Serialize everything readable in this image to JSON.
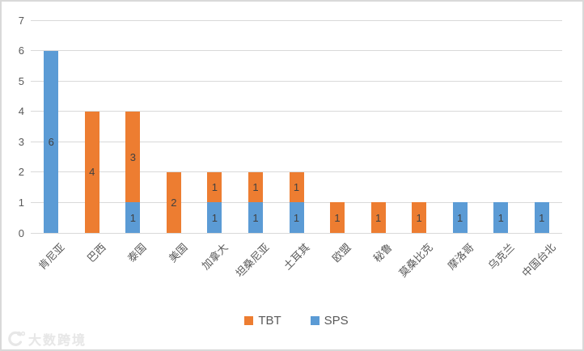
{
  "chart_data": {
    "type": "bar",
    "stacked": true,
    "orientation": "vertical",
    "categories": [
      "肯尼亚",
      "巴西",
      "泰国",
      "美国",
      "加拿大",
      "坦桑尼亚",
      "土耳其",
      "欧盟",
      "秘鲁",
      "莫桑比克",
      "摩洛哥",
      "乌克兰",
      "中国台北"
    ],
    "series": [
      {
        "name": "SPS",
        "color": "#5B9BD5",
        "values": [
          6,
          0,
          1,
          0,
          1,
          1,
          1,
          0,
          0,
          0,
          1,
          1,
          1
        ]
      },
      {
        "name": "TBT",
        "color": "#ED7D31",
        "values": [
          0,
          4,
          3,
          2,
          1,
          1,
          1,
          1,
          1,
          1,
          0,
          0,
          0
        ]
      }
    ],
    "totals": [
      6,
      4,
      4,
      2,
      2,
      2,
      2,
      1,
      1,
      1,
      1,
      1,
      1
    ],
    "data_labels": true,
    "title": "",
    "xlabel": "",
    "ylabel": "",
    "ylim": [
      0,
      7
    ],
    "yticks": [
      "0",
      "1",
      "2",
      "3",
      "4",
      "5",
      "6",
      "7"
    ],
    "grid": true,
    "gridline_color": "#d9d9d9",
    "legend_position": "bottom",
    "legend": [
      {
        "label": "TBT",
        "color": "#ED7D31"
      },
      {
        "label": "SPS",
        "color": "#5B9BD5"
      }
    ]
  },
  "colors": {
    "sps_blue": "#5B9BD5",
    "tbt_orange": "#ED7D31",
    "axis_text": "#595959",
    "data_label_text": "#404040",
    "gridline": "#d9d9d9",
    "frame_border": "#d9d9d9",
    "watermark": "#e7e7e7"
  },
  "watermark": {
    "text": "大数跨境"
  }
}
